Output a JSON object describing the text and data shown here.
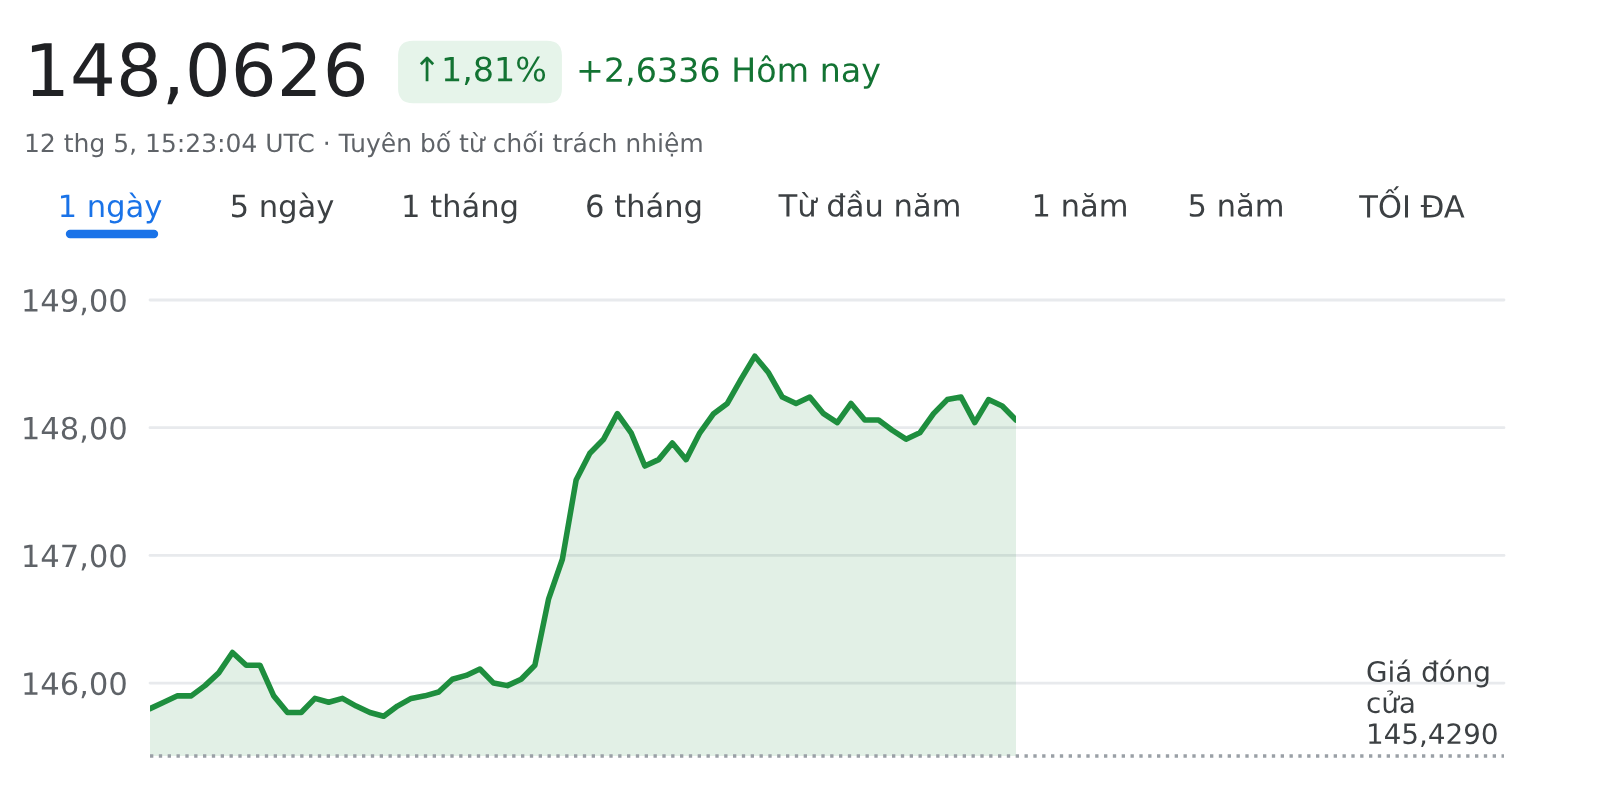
{
  "chart_data": {
    "type": "area",
    "title": "148,0626",
    "subtitle": "12 thg 5, 15:23:04 UTC · Tuyên bố từ chối trách nhiệm",
    "annotations": [
      "↑1,81%",
      "+2,6336 Hôm nay",
      "1 ngày",
      "5 ngày",
      "1 tháng",
      "6 tháng",
      "Từ đầu năm",
      "1 năm",
      "5 năm",
      "TỐI ĐA"
    ],
    "categories": [
      null,
      null,
      null,
      null,
      null,
      null,
      null,
      null,
      null,
      null,
      null,
      null,
      null,
      null,
      null,
      null,
      null,
      null,
      null,
      null,
      null,
      null,
      null,
      null,
      null,
      null,
      null,
      null,
      null,
      null,
      null,
      null,
      null,
      null,
      null,
      null,
      null,
      null,
      null,
      null,
      null,
      null,
      null,
      null,
      null,
      null,
      null,
      null,
      null,
      null,
      null,
      null,
      null,
      null,
      null,
      null,
      null,
      null,
      null,
      null,
      null,
      null,
      null,
      null
    ],
    "series": [
      {
        "color": "#1e8e3e",
        "values": [
          145.8,
          145.85,
          145.9,
          145.9,
          145.98,
          146.08,
          146.24,
          146.14,
          146.14,
          145.9,
          145.77,
          145.77,
          145.88,
          145.85,
          145.88,
          145.82,
          145.77,
          145.74,
          145.82,
          145.88,
          145.9,
          145.93,
          146.03,
          146.06,
          146.11,
          146.0,
          145.98,
          146.03,
          146.14,
          146.66,
          146.97,
          147.59,
          147.8,
          147.91,
          148.11,
          147.96,
          147.7,
          147.75,
          147.88,
          147.75,
          147.96,
          148.11,
          148.19,
          148.38,
          148.56,
          148.43,
          148.24,
          148.19,
          148.24,
          148.11,
          148.04,
          148.19,
          148.06,
          148.06,
          147.98,
          147.91,
          147.96,
          148.11,
          148.22,
          148.24,
          148.04,
          148.22,
          148.17,
          148.06
        ]
      }
    ],
    "ylim": [
      145.429,
      149
    ],
    "yticks": [
      {
        "value": 146,
        "label": "146,00"
      },
      {
        "value": 147,
        "label": "147,00"
      },
      {
        "value": 148,
        "label": "148,00"
      },
      {
        "value": 149,
        "label": "149,00"
      }
    ],
    "grid": "y",
    "ref_lines": [
      {
        "axis": "y",
        "value": 145.429,
        "label": "Giá đóng\ncửa\n145,4290",
        "color": "#9aa0a6",
        "line_style": "dotted"
      }
    ]
  }
}
